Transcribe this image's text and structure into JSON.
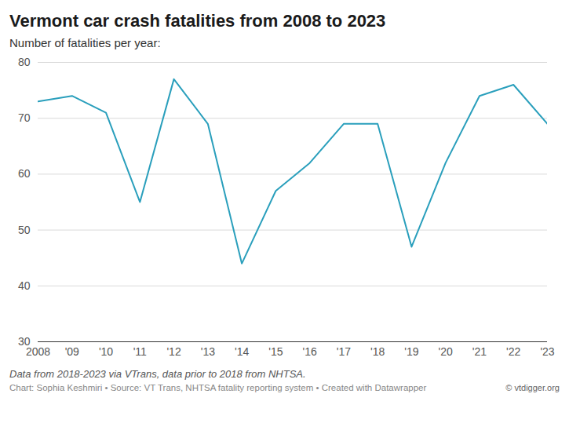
{
  "chart_data": {
    "type": "line",
    "title": "Vermont car crash fatalities from 2008 to 2023",
    "subtitle": "Number of fatalities per year:",
    "note": "Data from 2018-2023 via VTrans, data prior to 2018 from NHTSA.",
    "source": "Chart: Sophia Keshmiri • Source: VT Trans, NHTSA fatality reporting system • Created with Datawrapper",
    "watermark": "© vtdigger.org",
    "x": [
      2008,
      2009,
      2010,
      2011,
      2012,
      2013,
      2014,
      2015,
      2016,
      2017,
      2018,
      2019,
      2020,
      2021,
      2022,
      2023
    ],
    "values": [
      73,
      74,
      71,
      55,
      77,
      69,
      44,
      57,
      62,
      69,
      69,
      47,
      62,
      74,
      76,
      69
    ],
    "color": "#2a9fbc",
    "xlim": [
      2008,
      2023
    ],
    "xticks": [
      {
        "value": 2008,
        "label": "2008"
      },
      {
        "value": 2009,
        "label": "'09"
      },
      {
        "value": 2010,
        "label": "'10"
      },
      {
        "value": 2011,
        "label": "'11"
      },
      {
        "value": 2012,
        "label": "'12"
      },
      {
        "value": 2013,
        "label": "'13"
      },
      {
        "value": 2014,
        "label": "'14"
      },
      {
        "value": 2015,
        "label": "'15"
      },
      {
        "value": 2016,
        "label": "'16"
      },
      {
        "value": 2017,
        "label": "'17"
      },
      {
        "value": 2018,
        "label": "'18"
      },
      {
        "value": 2019,
        "label": "'19"
      },
      {
        "value": 2020,
        "label": "'20"
      },
      {
        "value": 2021,
        "label": "'21"
      },
      {
        "value": 2022,
        "label": "'22"
      },
      {
        "value": 2023,
        "label": "'23"
      }
    ],
    "ylim": [
      30,
      80
    ],
    "yticks": [
      30,
      40,
      50,
      60,
      70,
      80
    ],
    "grid": true
  }
}
